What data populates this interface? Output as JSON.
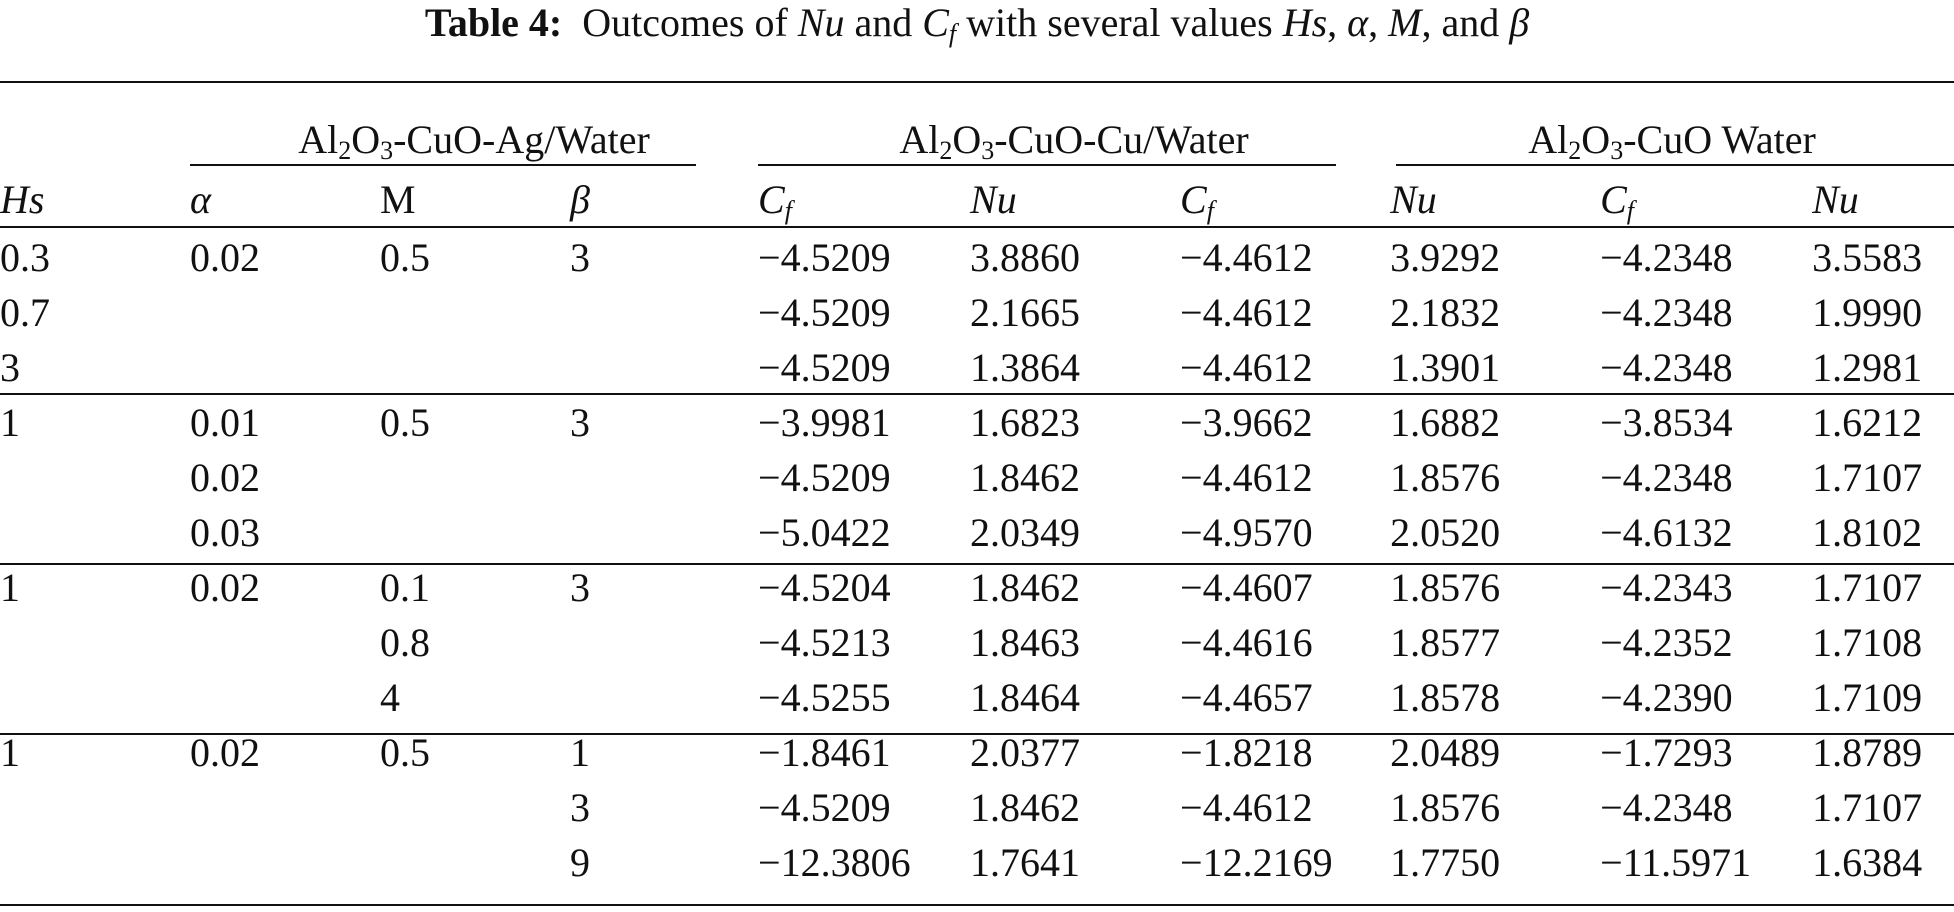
{
  "caption": {
    "label": "Table 4:",
    "text_before_nu": "Outcomes of",
    "nu": "Nu",
    "text_and": "and",
    "cf_base": "C",
    "cf_sub": "f",
    "text_values": "with several values",
    "hs": "Hs",
    "alpha": "α",
    "m": "M",
    "text_and2": "and",
    "beta": "β"
  },
  "groups": [
    {
      "p1": "Al",
      "s1": "2",
      "p2": "O",
      "s2": "3",
      "rest": "-CuO-Ag/Water"
    },
    {
      "p1": "Al",
      "s1": "2",
      "p2": "O",
      "s2": "3",
      "rest": "-CuO-Cu/Water"
    },
    {
      "p1": "Al",
      "s1": "2",
      "p2": "O",
      "s2": "3",
      "rest": "-CuO Water"
    }
  ],
  "columns": {
    "hs": "Hs",
    "alpha": "α",
    "m": "M",
    "beta": "β",
    "cf_base": "C",
    "cf_sub": "f",
    "nu": "Nu"
  },
  "rows": [
    [
      "0.3",
      "0.02",
      "0.5",
      "3",
      "−4.5209",
      "3.8860",
      "−4.4612",
      "3.9292",
      "−4.2348",
      "3.5583"
    ],
    [
      "0.7",
      "",
      "",
      "",
      "−4.5209",
      "2.1665",
      "−4.4612",
      "2.1832",
      "−4.2348",
      "1.9990"
    ],
    [
      "3",
      "",
      "",
      "",
      "−4.5209",
      "1.3864",
      "−4.4612",
      "1.3901",
      "−4.2348",
      "1.2981"
    ],
    [
      "1",
      "0.01",
      "0.5",
      "3",
      "−3.9981",
      "1.6823",
      "−3.9662",
      "1.6882",
      "−3.8534",
      "1.6212"
    ],
    [
      "",
      "0.02",
      "",
      "",
      "−4.5209",
      "1.8462",
      "−4.4612",
      "1.8576",
      "−4.2348",
      "1.7107"
    ],
    [
      "",
      "0.03",
      "",
      "",
      "−5.0422",
      "2.0349",
      "−4.9570",
      "2.0520",
      "−4.6132",
      "1.8102"
    ],
    [
      "1",
      "0.02",
      "0.1",
      "3",
      "−4.5204",
      "1.8462",
      "−4.4607",
      "1.8576",
      "−4.2343",
      "1.7107"
    ],
    [
      "",
      "",
      "0.8",
      "",
      "−4.5213",
      "1.8463",
      "−4.4616",
      "1.8577",
      "−4.2352",
      "1.7108"
    ],
    [
      "",
      "",
      "4",
      "",
      "−4.5255",
      "1.8464",
      "−4.4657",
      "1.8578",
      "−4.2390",
      "1.7109"
    ],
    [
      "1",
      "0.02",
      "0.5",
      "1",
      "−1.8461",
      "2.0377",
      "−1.8218",
      "2.0489",
      "−1.7293",
      "1.8789"
    ],
    [
      "",
      "",
      "",
      "3",
      "−4.5209",
      "1.8462",
      "−4.4612",
      "1.8576",
      "−4.2348",
      "1.7107"
    ],
    [
      "",
      "",
      "",
      "9",
      "−12.3806",
      "1.7641",
      "−12.2169",
      "1.7750",
      "−11.5971",
      "1.6384"
    ]
  ]
}
